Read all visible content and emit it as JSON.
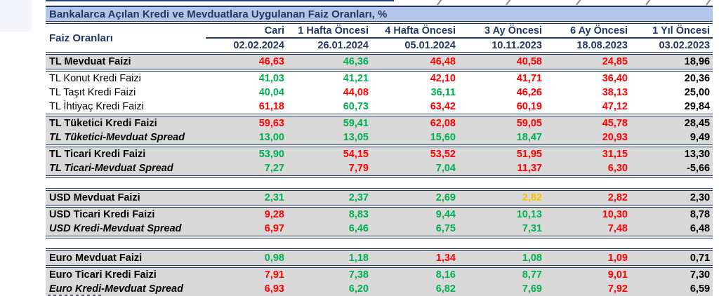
{
  "title": "Bankalarca Açılan Kredi ve Mevduatlara Uygulanan Faiz Oranları, %",
  "header": {
    "label_col": "Faiz Oranları",
    "columns": [
      {
        "label": "Cari",
        "date": "02.02.2024"
      },
      {
        "label": "1 Hafta Öncesi",
        "date": "26.01.2024"
      },
      {
        "label": "4 Hafta Öncesi",
        "date": "05.01.2024"
      },
      {
        "label": "3 Ay Öncesi",
        "date": "10.11.2023"
      },
      {
        "label": "6 Ay Öncesi",
        "date": "18.08.2023"
      },
      {
        "label": "1 Yıl Öncesi",
        "date": "03.02.2023"
      }
    ]
  },
  "colors": {
    "red": "#ff0000",
    "green": "#00b050",
    "amber": "#ffc000",
    "black": "#000000",
    "navy": "#1f3864",
    "title_bg": "#b4c6e7",
    "row_gray": "#d9d9d9"
  },
  "rows": [
    {
      "label": "TL Mevduat Faizi",
      "labelStyle": "lb-bold",
      "cls": "gray sep-b",
      "values": [
        {
          "v": "46,63",
          "c": "red"
        },
        {
          "v": "46,36",
          "c": "green"
        },
        {
          "v": "46,48",
          "c": "red"
        },
        {
          "v": "40,58",
          "c": "red"
        },
        {
          "v": "24,85",
          "c": "red"
        },
        {
          "v": "18,96",
          "c": "black"
        }
      ]
    },
    {
      "label": "TL Konut Kredi Faizi",
      "labelStyle": "lb-reg",
      "cls": "white",
      "values": [
        {
          "v": "41,03",
          "c": "green"
        },
        {
          "v": "41,21",
          "c": "green"
        },
        {
          "v": "42,10",
          "c": "red"
        },
        {
          "v": "41,71",
          "c": "red"
        },
        {
          "v": "36,40",
          "c": "red"
        },
        {
          "v": "20,36",
          "c": "black"
        }
      ]
    },
    {
      "label": "TL Taşıt Kredi Faizi",
      "labelStyle": "lb-reg",
      "cls": "white",
      "values": [
        {
          "v": "40,04",
          "c": "green"
        },
        {
          "v": "44,08",
          "c": "red"
        },
        {
          "v": "36,11",
          "c": "green"
        },
        {
          "v": "46,26",
          "c": "red"
        },
        {
          "v": "38,13",
          "c": "red"
        },
        {
          "v": "25,00",
          "c": "black"
        }
      ]
    },
    {
      "label": "TL İhtiyaç Kredi Faizi",
      "labelStyle": "lb-reg",
      "cls": "white sep-b",
      "values": [
        {
          "v": "61,18",
          "c": "red"
        },
        {
          "v": "60,73",
          "c": "green"
        },
        {
          "v": "63,42",
          "c": "red"
        },
        {
          "v": "60,19",
          "c": "red"
        },
        {
          "v": "47,12",
          "c": "red"
        },
        {
          "v": "29,84",
          "c": "black"
        }
      ]
    },
    {
      "label": "TL Tüketici Kredi Faizi",
      "labelStyle": "lb-bold",
      "cls": "gray",
      "values": [
        {
          "v": "59,63",
          "c": "red"
        },
        {
          "v": "59,41",
          "c": "green"
        },
        {
          "v": "62,08",
          "c": "red"
        },
        {
          "v": "59,05",
          "c": "red"
        },
        {
          "v": "45,78",
          "c": "red"
        },
        {
          "v": "28,45",
          "c": "black"
        }
      ]
    },
    {
      "label": "TL Tüketici-Mevduat Spread",
      "labelStyle": "lb-italic",
      "cls": "gray sep-b",
      "values": [
        {
          "v": "13,00",
          "c": "green"
        },
        {
          "v": "13,05",
          "c": "green"
        },
        {
          "v": "15,60",
          "c": "green"
        },
        {
          "v": "18,47",
          "c": "green"
        },
        {
          "v": "20,93",
          "c": "red"
        },
        {
          "v": "9,49",
          "c": "black"
        }
      ]
    },
    {
      "label": "TL Ticari Kredi Faizi",
      "labelStyle": "lb-bold",
      "cls": "gray",
      "values": [
        {
          "v": "53,90",
          "c": "green"
        },
        {
          "v": "54,15",
          "c": "red"
        },
        {
          "v": "53,52",
          "c": "red"
        },
        {
          "v": "51,95",
          "c": "red"
        },
        {
          "v": "31,15",
          "c": "red"
        },
        {
          "v": "13,30",
          "c": "black"
        }
      ]
    },
    {
      "label": "TL Ticari-Mevduat Spread",
      "labelStyle": "lb-italic",
      "cls": "gray sep-b",
      "values": [
        {
          "v": "7,27",
          "c": "green"
        },
        {
          "v": "7,79",
          "c": "red"
        },
        {
          "v": "7,04",
          "c": "green"
        },
        {
          "v": "11,37",
          "c": "red"
        },
        {
          "v": "6,30",
          "c": "red"
        },
        {
          "v": "-5,66",
          "c": "black"
        }
      ]
    },
    {
      "type": "gap"
    },
    {
      "label": "USD Mevduat Faizi",
      "labelStyle": "lb-bold",
      "cls": "gray sep-t sep-b",
      "values": [
        {
          "v": "2,31",
          "c": "green"
        },
        {
          "v": "2,37",
          "c": "green"
        },
        {
          "v": "2,69",
          "c": "green"
        },
        {
          "v": "2,82",
          "c": "amber"
        },
        {
          "v": "2,82",
          "c": "red"
        },
        {
          "v": "2,30",
          "c": "black"
        }
      ]
    },
    {
      "label": "USD Ticari Kredi Faizi",
      "labelStyle": "lb-bold",
      "cls": "gray",
      "values": [
        {
          "v": "9,28",
          "c": "red"
        },
        {
          "v": "8,83",
          "c": "green"
        },
        {
          "v": "9,44",
          "c": "green"
        },
        {
          "v": "10,13",
          "c": "green"
        },
        {
          "v": "10,30",
          "c": "red"
        },
        {
          "v": "8,78",
          "c": "black"
        }
      ]
    },
    {
      "label": "USD Kredi-Mevduat Spread",
      "labelStyle": "lb-italic",
      "cls": "gray sep-b",
      "values": [
        {
          "v": "6,97",
          "c": "red"
        },
        {
          "v": "6,46",
          "c": "green"
        },
        {
          "v": "6,75",
          "c": "green"
        },
        {
          "v": "7,31",
          "c": "green"
        },
        {
          "v": "7,48",
          "c": "red"
        },
        {
          "v": "6,48",
          "c": "black"
        }
      ]
    },
    {
      "type": "gap"
    },
    {
      "label": "Euro Mevduat Faizi",
      "labelStyle": "lb-bold",
      "cls": "gray sep-t sep-b",
      "values": [
        {
          "v": "0,98",
          "c": "green"
        },
        {
          "v": "1,18",
          "c": "green"
        },
        {
          "v": "1,34",
          "c": "red"
        },
        {
          "v": "1,08",
          "c": "green"
        },
        {
          "v": "1,09",
          "c": "red"
        },
        {
          "v": "0,71",
          "c": "black"
        }
      ]
    },
    {
      "label": "Euro Ticari Kredi Faizi",
      "labelStyle": "lb-bold",
      "cls": "gray",
      "values": [
        {
          "v": "7,91",
          "c": "red"
        },
        {
          "v": "7,38",
          "c": "green"
        },
        {
          "v": "8,16",
          "c": "green"
        },
        {
          "v": "8,77",
          "c": "green"
        },
        {
          "v": "9,01",
          "c": "red"
        },
        {
          "v": "7,30",
          "c": "black"
        }
      ]
    },
    {
      "label": "Euro Kredi-Mevduat Spread",
      "labelStyle": "lb-italic",
      "cls": "gray sep-b",
      "values": [
        {
          "v": "6,93",
          "c": "red"
        },
        {
          "v": "6,20",
          "c": "green"
        },
        {
          "v": "6,82",
          "c": "green"
        },
        {
          "v": "7,69",
          "c": "green"
        },
        {
          "v": "7,92",
          "c": "red"
        },
        {
          "v": "6,59",
          "c": "black"
        }
      ]
    }
  ]
}
